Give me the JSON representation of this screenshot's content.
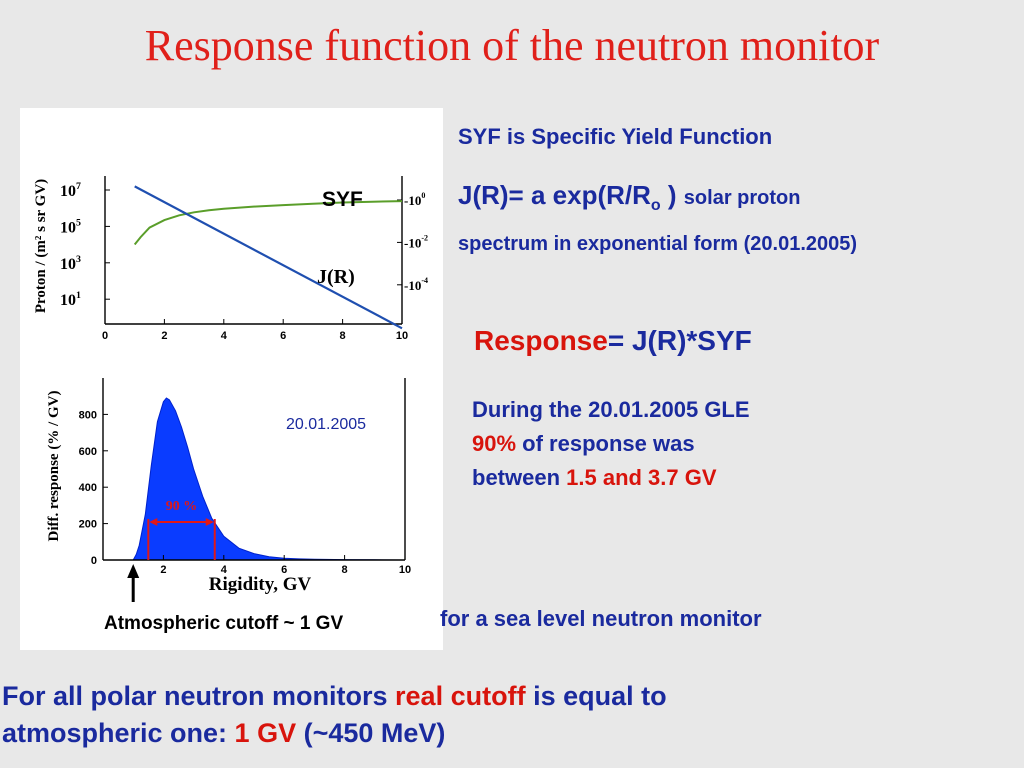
{
  "title": "Response function of the neutron monitor",
  "text": {
    "syf_definition": "SYF is Specific Yield Function",
    "jr_formula_a": "J(R)= a exp(R/R",
    "jr_formula_sub": "o",
    "jr_formula_b": " )",
    "jr_formula_c": "solar proton",
    "jr_line2": "spectrum in exponential form (20.01.2005)",
    "response_label": "Response",
    "response_formula": "= J(R)*SYF",
    "during_1": "During  the 20.01.2005 GLE",
    "during_pct": "90%",
    "during_2": " of response was",
    "during_3": "between  ",
    "during_range": "1.5 and 3.7 GV",
    "sealevel": "for a sea level neutron monitor",
    "bottom_1": "For all polar neutron monitors ",
    "bottom_real": "real",
    "bottom_cutoff": "cutoff",
    "bottom_2": " is equal to",
    "bottom_3": "atmospheric one: ",
    "bottom_gv": "1 GV",
    "bottom_4": " (~450 MeV)"
  },
  "colors": {
    "title": "#e0201a",
    "text_blue": "#1a2a9e",
    "highlight_red": "#d8140c",
    "syf_curve": "#5a9e2a",
    "jr_line": "#1f4fb0",
    "response_fill": "#0a3cff"
  },
  "chart_data": [
    {
      "type": "line",
      "xlim": [
        0,
        10
      ],
      "xticks": [
        "0",
        "2",
        "4",
        "6",
        "8",
        "10"
      ],
      "ylabel": "Proton / (m² s sr GV)",
      "yticks_left": [
        {
          "base": "10",
          "exp": "7"
        },
        {
          "base": "10",
          "exp": "5"
        },
        {
          "base": "10",
          "exp": "3"
        },
        {
          "base": "10",
          "exp": "1"
        }
      ],
      "yticks_right": [
        {
          "base": "10",
          "exp": "0"
        },
        {
          "base": "10",
          "exp": "-2"
        },
        {
          "base": "10",
          "exp": "-4"
        }
      ],
      "series": [
        {
          "name": "SYF",
          "color": "#5a9e2a",
          "x": [
            1.0,
            1.2,
            1.5,
            2.0,
            2.5,
            3.0,
            3.5,
            4.0,
            5.0,
            6.0,
            7.0,
            8.0,
            9.0,
            10.0
          ],
          "log10_y": [
            -2.1,
            -1.75,
            -1.3,
            -0.95,
            -0.72,
            -0.58,
            -0.48,
            -0.41,
            -0.31,
            -0.24,
            -0.18,
            -0.12,
            -0.08,
            -0.05
          ]
        },
        {
          "name": "J(R)",
          "color": "#1f4fb0",
          "x": [
            1.0,
            10.0
          ],
          "log10_y": [
            7.2,
            -0.6
          ]
        }
      ]
    },
    {
      "type": "area",
      "xlabel": "Rigidity, GV",
      "ylabel": "Diff. response (% / GV)",
      "xlim": [
        0,
        10
      ],
      "ylim": [
        0,
        1000
      ],
      "xticks": [
        "0",
        "2",
        "4",
        "6",
        "8",
        "10"
      ],
      "yticks": [
        "0",
        "200",
        "400",
        "600",
        "800"
      ],
      "annotation_date": "20.01.2005",
      "range_label": "90 %",
      "range": [
        1.5,
        3.7
      ],
      "cutoff_label": "Atmospheric cutoff ~ 1 GV",
      "cutoff": 1.0,
      "x": [
        1.0,
        1.1,
        1.2,
        1.4,
        1.6,
        1.8,
        2.0,
        2.1,
        2.2,
        2.4,
        2.6,
        2.8,
        3.0,
        3.3,
        3.6,
        4.0,
        4.5,
        5.0,
        5.5,
        6.0,
        6.5,
        7.0,
        8.0,
        9.0,
        10.0
      ],
      "y": [
        0,
        30,
        80,
        250,
        520,
        760,
        870,
        890,
        880,
        820,
        730,
        620,
        500,
        350,
        230,
        130,
        65,
        35,
        18,
        10,
        6,
        4,
        2,
        1,
        0
      ]
    }
  ]
}
